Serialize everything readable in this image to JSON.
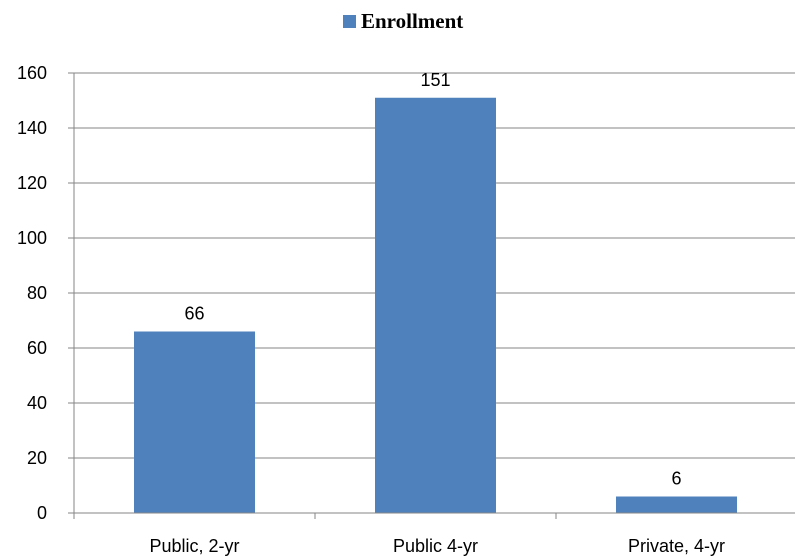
{
  "chart_data": {
    "type": "bar",
    "categories": [
      "Public, 2-yr",
      "Public 4-yr",
      "Private, 4-yr"
    ],
    "series": [
      {
        "name": "Enrollment",
        "values": [
          66,
          151,
          6
        ]
      }
    ],
    "data_labels": [
      "66",
      "151",
      "6"
    ],
    "yticks": [
      "0",
      "20",
      "40",
      "60",
      "80",
      "100",
      "120",
      "140",
      "160"
    ],
    "ylim": [
      0,
      160
    ],
    "grid": true,
    "legend": {
      "position": "top",
      "label": "Enrollment"
    },
    "colors": {
      "bar": "#4F81BD",
      "grid": "#868686",
      "axis": "#868686"
    },
    "title": "",
    "xlabel": "",
    "ylabel": ""
  }
}
